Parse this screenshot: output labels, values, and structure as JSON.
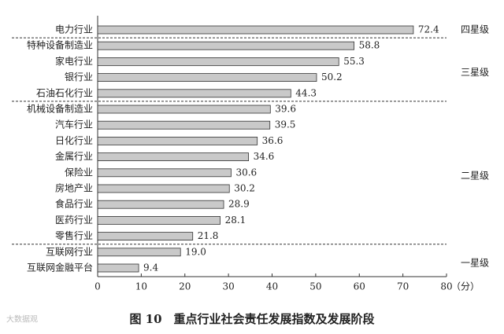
{
  "chart_data": {
    "type": "bar",
    "orientation": "horizontal",
    "caption": "图 10　重点行业社会责任发展指数及发展阶段",
    "watermark": "大数据观",
    "xlabel": "（分）",
    "categories": [
      "电力行业",
      "特种设备制造业",
      "家电行业",
      "银行业",
      "石油石化行业",
      "机械设备制造业",
      "汽车行业",
      "日化行业",
      "金属行业",
      "保险业",
      "房地产业",
      "食品行业",
      "医药行业",
      "零售行业",
      "互联网行业",
      "互联网金融平台"
    ],
    "values": [
      72.4,
      58.8,
      55.3,
      50.2,
      44.3,
      39.6,
      39.5,
      36.6,
      34.6,
      30.6,
      30.2,
      28.9,
      28.1,
      21.8,
      19.0,
      9.4
    ],
    "value_labels": [
      "72.4",
      "58.8",
      "55.3",
      "50.2",
      "44.3",
      "39.6",
      "39.5",
      "36.6",
      "34.6",
      "30.6",
      "30.2",
      "28.9",
      "28.1",
      "21.8",
      "19.0",
      "9.4"
    ],
    "color": "#c9c9c9",
    "xlim": [
      0,
      80
    ],
    "xticks": [
      0,
      10,
      20,
      30,
      40,
      50,
      60,
      70,
      80
    ],
    "groups": [
      {
        "label": "四星级",
        "count": 1
      },
      {
        "label": "三星级",
        "count": 4
      },
      {
        "label": "二星级",
        "count": 9
      },
      {
        "label": "一星级",
        "count": 2
      }
    ]
  }
}
